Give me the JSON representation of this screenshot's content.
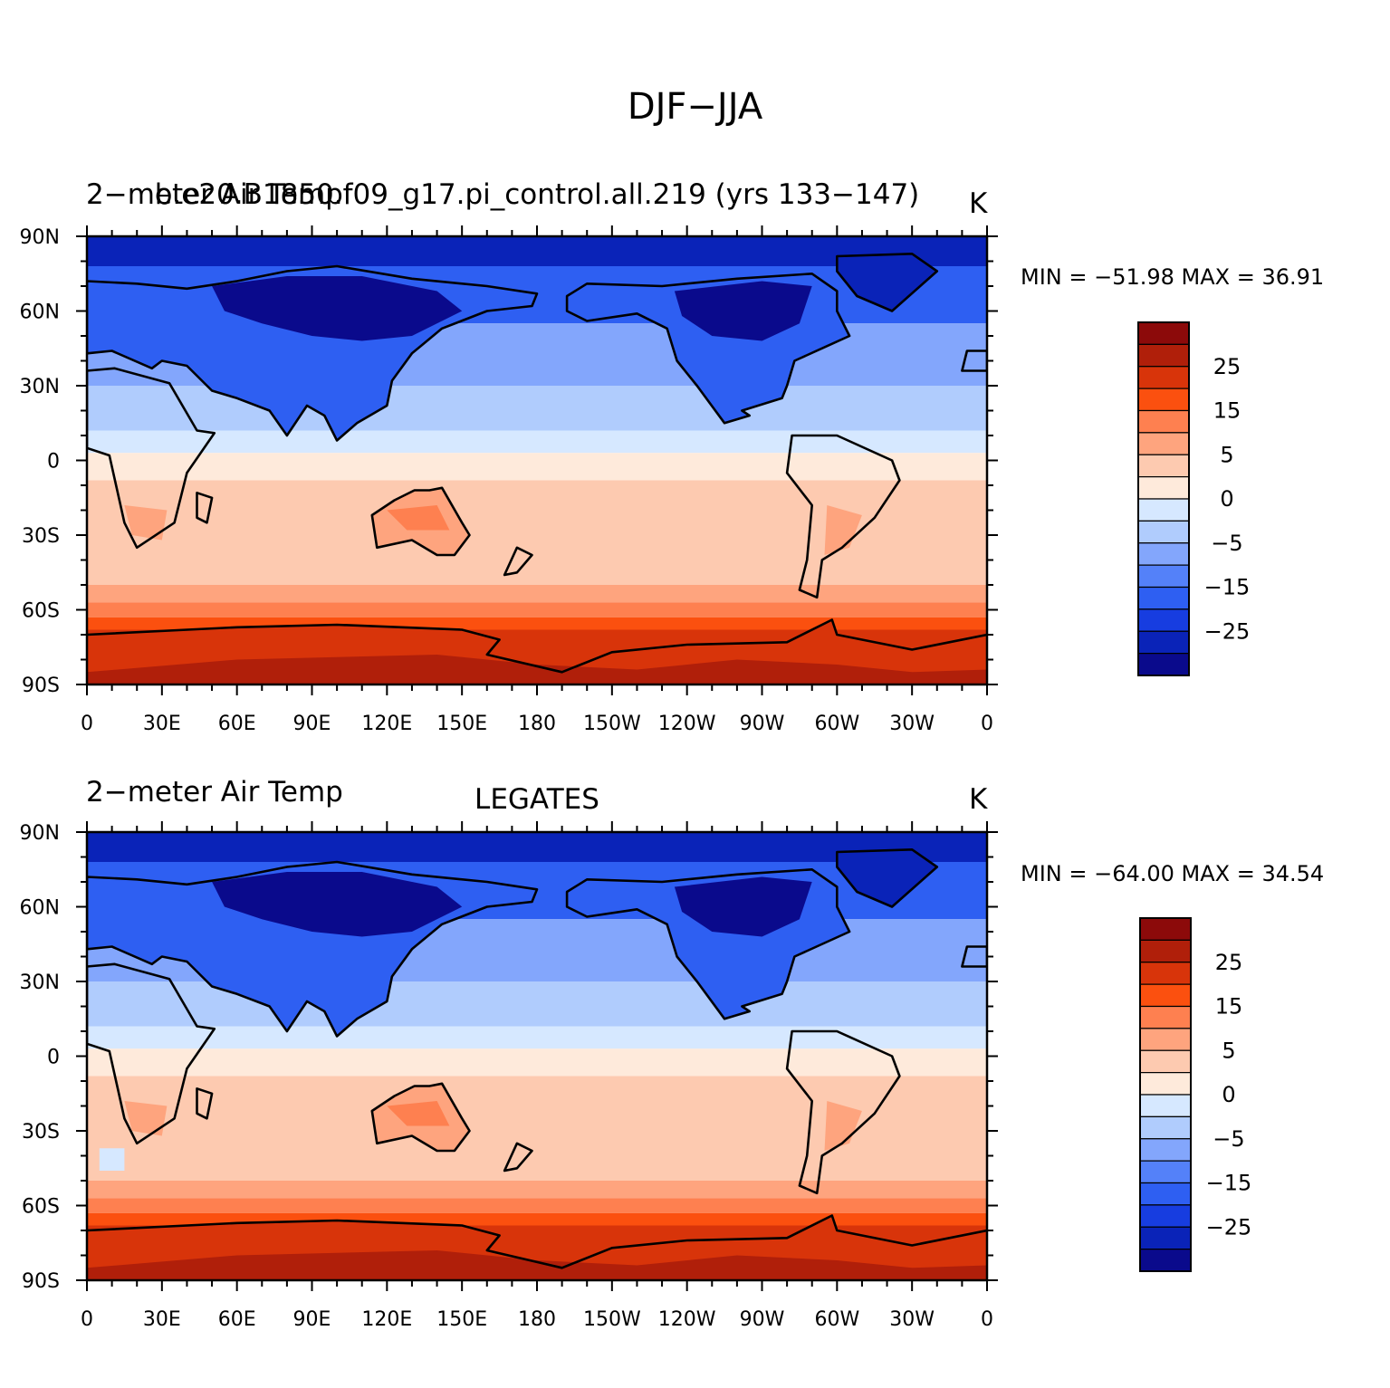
{
  "title": "DJF−JJA",
  "panels": [
    {
      "left_string": "2−meter Air Temp",
      "center_string": "b.e20.B1850.f09_g17.pi_control.all.219 (yrs 133−147)",
      "right_string": "K",
      "min_max": "MIN = −51.98 MAX =   36.91"
    },
    {
      "left_string": "2−meter Air Temp",
      "center_string": "LEGATES",
      "right_string": "K",
      "min_max": "MIN = −64.00 MAX =   34.54"
    }
  ],
  "lat_labels": [
    "90N",
    "60N",
    "30N",
    "0",
    "30S",
    "60S",
    "90S"
  ],
  "lon_labels": [
    "0",
    "30E",
    "60E",
    "90E",
    "120E",
    "150E",
    "180",
    "150W",
    "120W",
    "90W",
    "60W",
    "30W",
    "0"
  ],
  "colorbar": {
    "colors": [
      "#8c0a0a",
      "#b01f0a",
      "#d8340a",
      "#fb500f",
      "#fe8050",
      "#fea47e",
      "#fdcab0",
      "#feeadb",
      "#d6e8ff",
      "#b0ccfd",
      "#83a6fc",
      "#5481f9",
      "#2e5ff2",
      "#173de0",
      "#0a23b8",
      "#0a0a8c"
    ],
    "labels": [
      "25",
      "15",
      "5",
      "0",
      "−5",
      "−15",
      "−25"
    ]
  },
  "colors": {
    "polar_north": "#0a23b8",
    "north_land_cold": "#0a0a8c",
    "north_mid": "#2e5ff2",
    "north_ocean": "#83a6fc",
    "subtropic_ocean": "#b0ccfd",
    "tropic_ocean": "#d6e8ff",
    "south_tropic": "#feeadb",
    "south_mid": "#fdcab0",
    "south_warm": "#fea47e",
    "south_land": "#fe8050",
    "south_subpolar": "#fb500f",
    "antarctic": "#d8340a",
    "antarctic_core": "#b01f0a",
    "coastline": "#000000"
  }
}
